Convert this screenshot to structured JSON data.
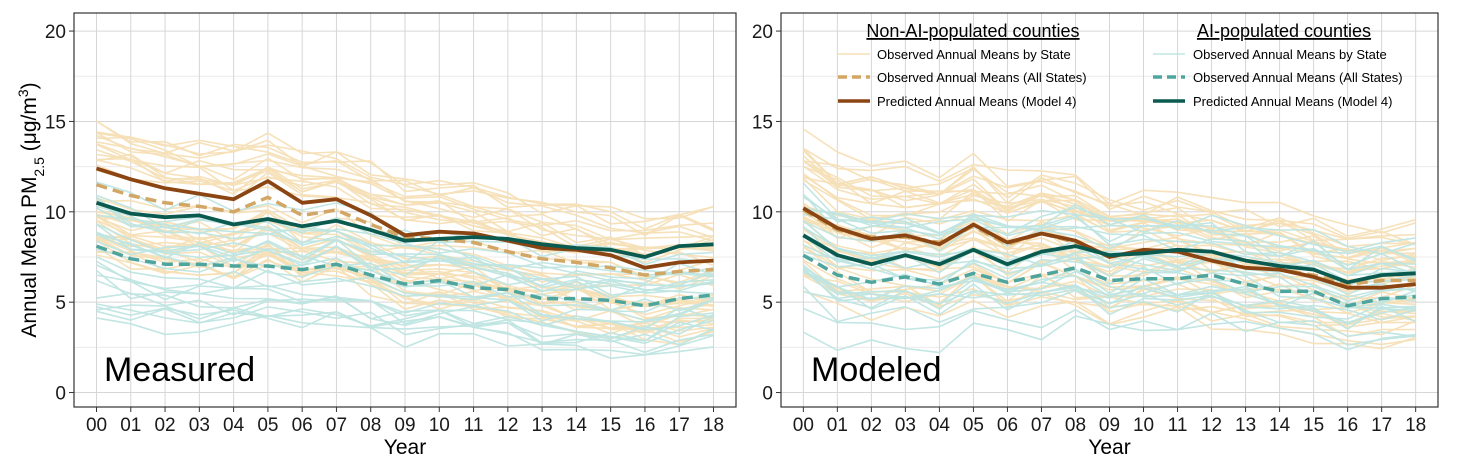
{
  "y_axis_label": "Annual Mean PM",
  "y_axis_sub": "2.5",
  "y_axis_units_open": " (μg/m",
  "y_axis_units_sup": "3",
  "y_axis_units_close": ")",
  "legend": {
    "non_ai_title": "Non-AI-populated counties",
    "ai_title": "AI-populated counties",
    "items": [
      "Observed Annual Means by State",
      "Observed Annual Means (All States)",
      "Predicted Annual Means (Model 4)"
    ]
  },
  "colors": {
    "non_ai_state": "#f5dfb6",
    "non_ai_all": "#d2a664",
    "non_ai_pred": "#8b4513",
    "ai_state": "#bfe5e1",
    "ai_all": "#4ea59d",
    "ai_pred": "#0b5a50",
    "grid_major": "#d6d6d6",
    "grid_minor": "#ececec"
  },
  "chart_data": [
    {
      "type": "line",
      "panel_label": "Measured",
      "xlabel": "Year",
      "ylabel": "Annual Mean PM2.5 (μg/m3)",
      "x": [
        "00",
        "01",
        "02",
        "03",
        "04",
        "05",
        "06",
        "07",
        "08",
        "09",
        "10",
        "11",
        "12",
        "13",
        "14",
        "15",
        "16",
        "17",
        "18"
      ],
      "ylim": [
        -0.8,
        21
      ],
      "yticks": [
        0,
        5,
        10,
        15,
        20
      ],
      "grid": true,
      "series": [
        {
          "name": "Non-AI-populated counties — Observed Annual Means (All States)",
          "style": "dashed",
          "values": [
            11.5,
            10.9,
            10.5,
            10.3,
            10.0,
            10.8,
            9.8,
            10.1,
            9.3,
            8.6,
            8.5,
            8.3,
            7.8,
            7.4,
            7.2,
            6.9,
            6.5,
            6.7,
            6.8
          ]
        },
        {
          "name": "Non-AI-populated counties — Predicted Annual Means (Model 4)",
          "style": "solid",
          "values": [
            12.4,
            11.8,
            11.3,
            11.0,
            10.7,
            11.7,
            10.5,
            10.7,
            9.8,
            8.7,
            8.9,
            8.8,
            8.4,
            8.0,
            7.9,
            7.6,
            6.9,
            7.2,
            7.3
          ]
        },
        {
          "name": "AI-populated counties — Observed Annual Means (All States)",
          "style": "dashed",
          "values": [
            8.1,
            7.4,
            7.1,
            7.1,
            7.0,
            7.0,
            6.8,
            7.1,
            6.5,
            6.0,
            6.2,
            5.8,
            5.7,
            5.2,
            5.2,
            5.1,
            4.8,
            5.2,
            5.4
          ]
        },
        {
          "name": "AI-populated counties — Predicted Annual Means (Model 4)",
          "style": "solid",
          "values": [
            10.5,
            9.9,
            9.7,
            9.8,
            9.3,
            9.6,
            9.2,
            9.5,
            9.0,
            8.4,
            8.5,
            8.6,
            8.5,
            8.2,
            8.0,
            7.9,
            7.5,
            8.1,
            8.2
          ]
        }
      ]
    },
    {
      "type": "line",
      "panel_label": "Modeled",
      "xlabel": "Year",
      "ylabel": "",
      "x": [
        "00",
        "01",
        "02",
        "03",
        "04",
        "05",
        "06",
        "07",
        "08",
        "09",
        "10",
        "11",
        "12",
        "13",
        "14",
        "15",
        "16",
        "17",
        "18"
      ],
      "ylim": [
        -0.8,
        21
      ],
      "yticks": [
        0,
        5,
        10,
        15,
        20
      ],
      "grid": true,
      "legend_position": "top",
      "series": [
        {
          "name": "Non-AI-populated counties — Observed Annual Means (All States)",
          "style": "dashed",
          "values": [
            10.1,
            9.0,
            8.6,
            8.6,
            8.3,
            9.2,
            8.2,
            8.8,
            8.3,
            7.5,
            7.8,
            7.8,
            7.3,
            6.9,
            6.8,
            6.5,
            6.0,
            6.2,
            6.2
          ]
        },
        {
          "name": "Non-AI-populated counties — Predicted Annual Means (Model 4)",
          "style": "solid",
          "values": [
            10.2,
            9.1,
            8.5,
            8.7,
            8.2,
            9.3,
            8.3,
            8.8,
            8.4,
            7.5,
            7.9,
            7.8,
            7.3,
            6.9,
            6.8,
            6.4,
            5.8,
            5.8,
            6.0
          ]
        },
        {
          "name": "AI-populated counties — Observed Annual Means (All States)",
          "style": "dashed",
          "values": [
            7.6,
            6.5,
            6.1,
            6.4,
            6.0,
            6.6,
            6.1,
            6.5,
            6.9,
            6.2,
            6.3,
            6.3,
            6.5,
            6.0,
            5.6,
            5.6,
            4.8,
            5.2,
            5.3
          ]
        },
        {
          "name": "AI-populated counties — Predicted Annual Means (Model 4)",
          "style": "solid",
          "values": [
            8.7,
            7.6,
            7.1,
            7.6,
            7.1,
            7.9,
            7.1,
            7.8,
            8.1,
            7.6,
            7.7,
            7.9,
            7.8,
            7.3,
            7.0,
            6.8,
            6.1,
            6.5,
            6.6
          ]
        }
      ]
    }
  ]
}
